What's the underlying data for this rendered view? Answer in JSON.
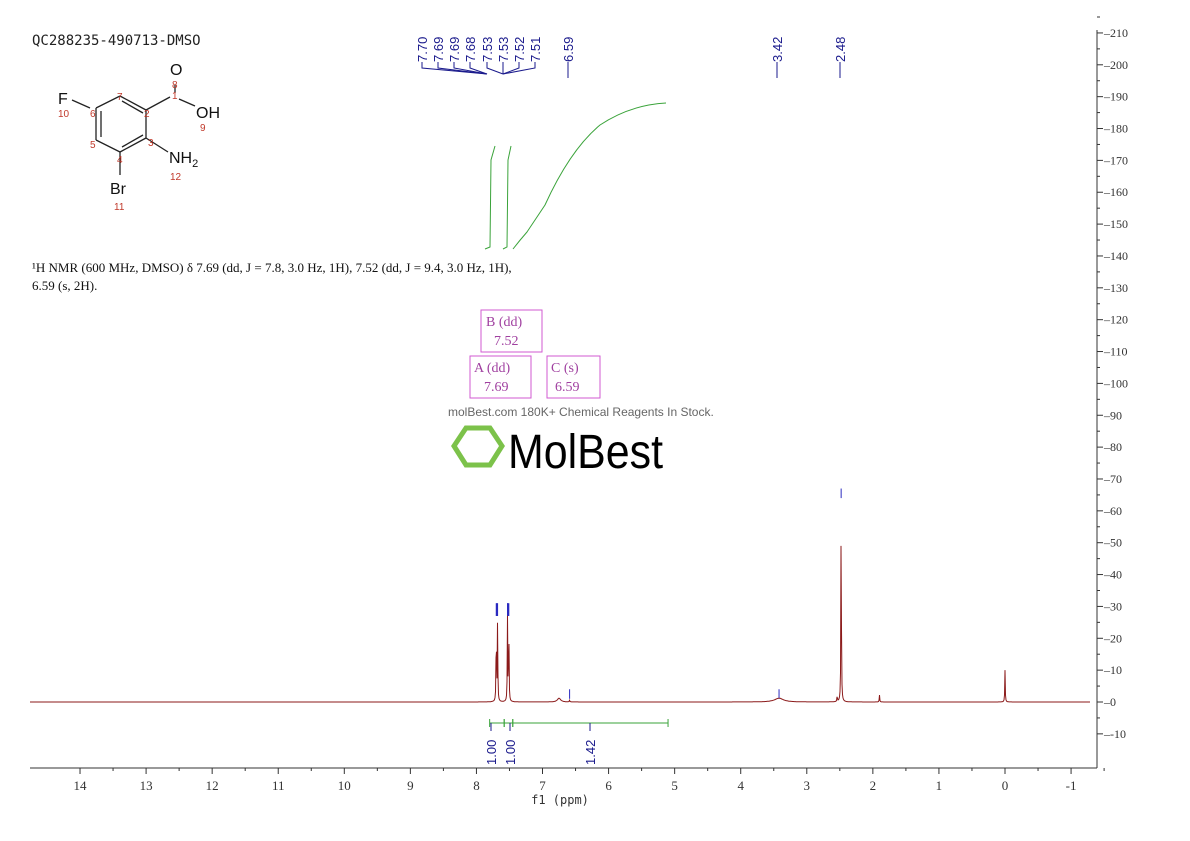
{
  "sample_id": "QC288235-490713-DMSO",
  "nmr_text": {
    "line1": "¹H NMR (600 MHz, DMSO) δ 7.69 (dd, J = 7.8, 3.0 Hz, 1H), 7.52 (dd, J = 9.4, 3.0 Hz, 1H),",
    "line2": "6.59 (s, 2H)."
  },
  "structure": {
    "atoms": {
      "O": "O",
      "OH": "OH",
      "F": "F",
      "NH2": "NH",
      "NH2_sub": "2",
      "Br": "Br"
    },
    "numbers": [
      "1",
      "2",
      "3",
      "4",
      "5",
      "6",
      "7",
      "8",
      "9",
      "10",
      "11",
      "12"
    ]
  },
  "watermark": {
    "brand": "MolBest",
    "tagline": "molBest.com 180K+ Chemical Reagents In Stock.",
    "boxes": [
      {
        "label": "B (dd)",
        "value": "7.52"
      },
      {
        "label": "A (dd)",
        "value": "7.69"
      },
      {
        "label": "C (s)",
        "value": "6.59"
      }
    ]
  },
  "chart_data": {
    "type": "line",
    "xlabel": "f1 (ppm)",
    "xlim": [
      14.8,
      -1.4
    ],
    "ylim": [
      -20,
      212
    ],
    "x_ticks": [
      "14",
      "13",
      "12",
      "11",
      "10",
      "9",
      "8",
      "7",
      "6",
      "5",
      "4",
      "3",
      "2",
      "1",
      "0",
      "-1"
    ],
    "y_ticks": [
      "-10",
      "0",
      "10",
      "20",
      "30",
      "40",
      "50",
      "60",
      "70",
      "80",
      "90",
      "100",
      "110",
      "120",
      "130",
      "140",
      "150",
      "160",
      "170",
      "180",
      "190",
      "200",
      "210"
    ],
    "peak_labels": [
      "7.70",
      "7.69",
      "7.69",
      "7.68",
      "7.53",
      "7.53",
      "7.52",
      "7.51",
      "6.59",
      "3.42",
      "2.48"
    ],
    "peaks": [
      {
        "ppm": 7.7,
        "h": 26
      },
      {
        "ppm": 7.68,
        "h": 26
      },
      {
        "ppm": 7.53,
        "h": 26
      },
      {
        "ppm": 7.51,
        "h": 26
      },
      {
        "ppm": 6.59,
        "h": 0.6
      },
      {
        "ppm": 6.75,
        "h": 1.2
      },
      {
        "ppm": 3.42,
        "h": 1.2
      },
      {
        "ppm": 2.48,
        "h": 64
      },
      {
        "ppm": 2.54,
        "h": 2
      },
      {
        "ppm": 1.9,
        "h": 2.2
      },
      {
        "ppm": 0.0,
        "h": 10
      }
    ],
    "integrals": [
      {
        "from": 7.8,
        "to": 7.58,
        "value": "1.00"
      },
      {
        "from": 7.58,
        "to": 7.45,
        "value": "1.00"
      },
      {
        "from": 7.45,
        "to": 5.1,
        "value": "1.42"
      }
    ],
    "colors": {
      "spectrum": "#8b1a1a",
      "integral": "#3aa33a",
      "labels": "#1a1a8c",
      "watermark_box": "#d25ad2",
      "logo": "#7cc24a"
    }
  }
}
